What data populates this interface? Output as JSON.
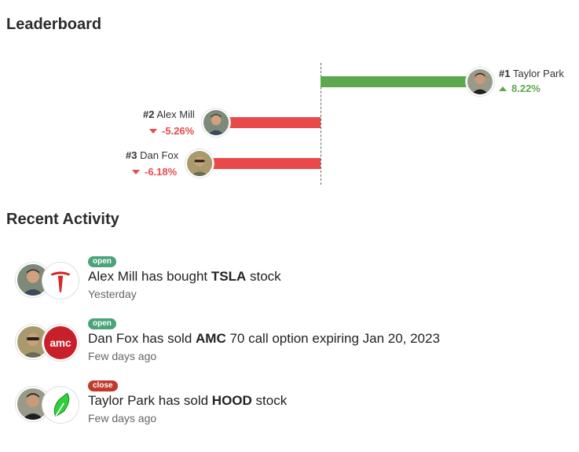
{
  "leaderboard": {
    "title": "Leaderboard",
    "colors": {
      "positive": "#5da74e",
      "negative": "#e84a4a"
    },
    "entries": [
      {
        "rank": "#1",
        "name": "Taylor Park",
        "change_pct": 8.22,
        "change_label": "8.22%",
        "direction": "up"
      },
      {
        "rank": "#2",
        "name": "Alex Mill",
        "change_pct": -5.26,
        "change_label": "-5.26%",
        "direction": "down"
      },
      {
        "rank": "#3",
        "name": "Dan Fox",
        "change_pct": -6.18,
        "change_label": "-6.18%",
        "direction": "down"
      }
    ]
  },
  "recent_activity": {
    "title": "Recent Activity",
    "items": [
      {
        "badge": "open",
        "text_pre": "Alex Mill has bought ",
        "ticker": "TSLA",
        "text_post": " stock",
        "time": "Yesterday",
        "avatar_icon": "alex-mill-avatar",
        "logo_icon": "tesla-logo-icon"
      },
      {
        "badge": "open",
        "text_pre": "Dan Fox has sold ",
        "ticker": "AMC",
        "text_post": " 70 call option expiring Jan 20, 2023",
        "time": "Few days ago",
        "avatar_icon": "dan-fox-avatar",
        "logo_icon": "amc-logo-icon"
      },
      {
        "badge": "close",
        "text_pre": "Taylor Park has sold ",
        "ticker": "HOOD",
        "text_post": " stock",
        "time": "Few days ago",
        "avatar_icon": "taylor-park-avatar",
        "logo_icon": "robinhood-logo-icon"
      }
    ]
  }
}
